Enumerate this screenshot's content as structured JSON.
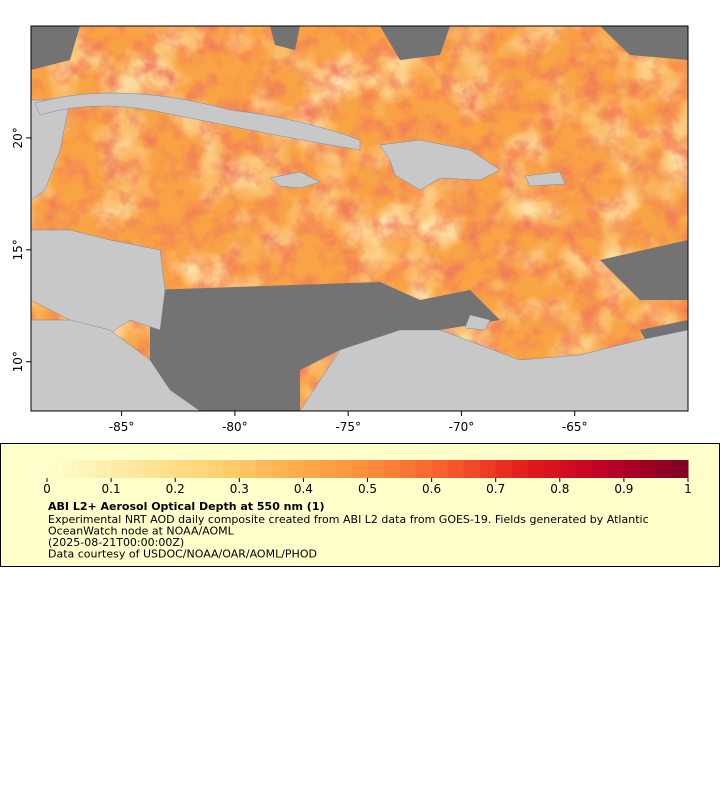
{
  "map": {
    "xlim": [
      -89,
      -60
    ],
    "ylim": [
      7.8,
      25
    ],
    "xticks": [
      {
        "value": -85,
        "label": "-85°"
      },
      {
        "value": -80,
        "label": "-80°"
      },
      {
        "value": -75,
        "label": "-75°"
      },
      {
        "value": -70,
        "label": "-70°"
      },
      {
        "value": -65,
        "label": "-65°"
      }
    ],
    "yticks": [
      {
        "value": 10,
        "label": "10°"
      },
      {
        "value": 15,
        "label": "15°"
      },
      {
        "value": 20,
        "label": "20°"
      }
    ]
  },
  "legend": {
    "range": [
      0,
      1
    ],
    "ticks": [
      0,
      0.1,
      0.2,
      0.3,
      0.4,
      0.5,
      0.6,
      0.7,
      0.8,
      0.9,
      1
    ],
    "colors": [
      "#ffffcc",
      "#fee8a0",
      "#fed676",
      "#fdb150",
      "#fd8d3c",
      "#f85c2c",
      "#e31a1c",
      "#bd0026",
      "#800026"
    ],
    "title": "ABI L2+ Aerosol Optical Depth at 550 nm (1)",
    "lines": [
      "Experimental NRT AOD daily composite created from ABI L2 data from GOES-19. Fields generated by Atlantic",
      "OceanWatch node at NOAA/AOML",
      "(2025-08-21T00:00:00Z)",
      "Data courtesy of USDOC/NOAA/OAR/AOML/PHOD"
    ]
  }
}
